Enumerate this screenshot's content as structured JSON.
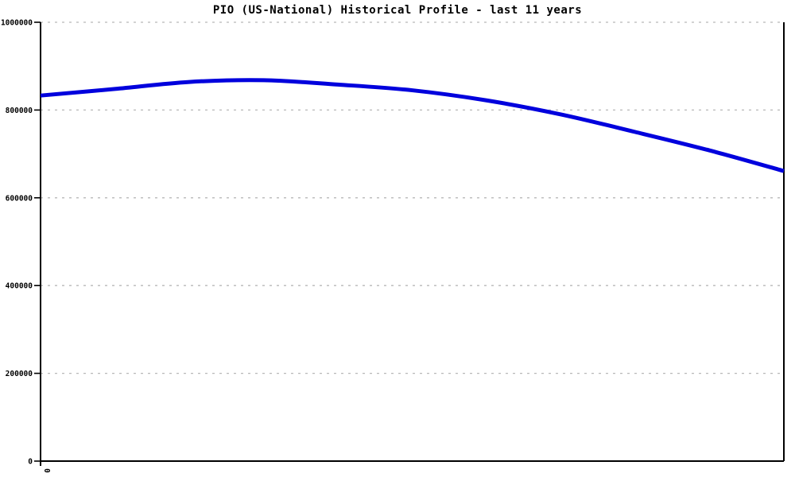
{
  "page": {
    "background": "#ffffff"
  },
  "chart_data": {
    "type": "line",
    "title": "PIO (US-National) Historical Profile - last 11 years",
    "x": [
      0,
      1,
      2,
      3,
      4,
      5,
      6,
      7,
      8,
      9,
      10
    ],
    "values": [
      833000,
      848000,
      864000,
      868000,
      858000,
      845000,
      822000,
      790000,
      750000,
      708000,
      661000
    ],
    "xlabel": "",
    "ylabel": "",
    "xlim": [
      0,
      10
    ],
    "ylim": [
      0,
      1000000
    ],
    "y_ticks": [
      0,
      200000,
      400000,
      600000,
      800000,
      1000000
    ],
    "y_tick_labels": [
      "0",
      "200000",
      "400000",
      "600000",
      "800000",
      "1000000"
    ],
    "x_tick_labels": [
      "0"
    ],
    "grid": "horizontal-dashed",
    "legend_position": "none",
    "line_color": "#0000dd",
    "line_width": 5,
    "grid_color": "#b8b8b8",
    "axis_color": "#000000",
    "plot_background": "#ffffff"
  }
}
